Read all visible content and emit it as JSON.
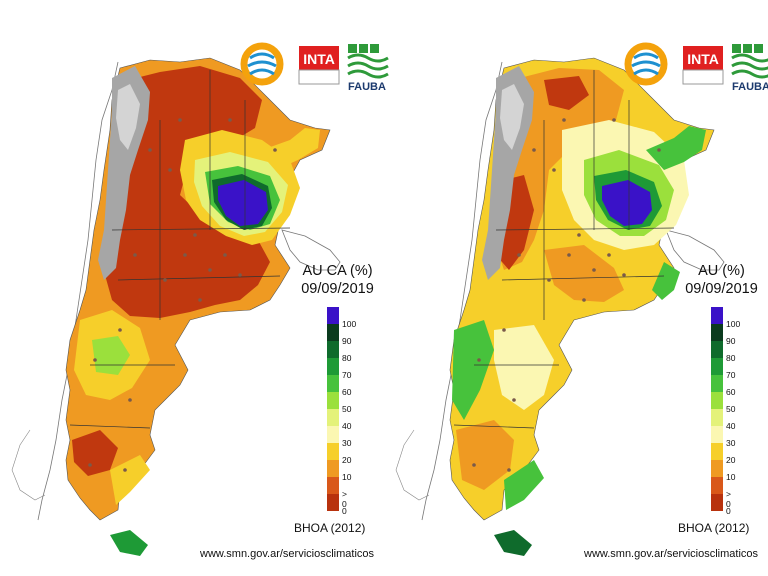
{
  "panels": [
    {
      "id": "left",
      "title": "AU CA (%)",
      "date": "09/09/2019",
      "model": "BHOA (2012)",
      "source": "www.smn.gov.ar/serviciosclimaticos"
    },
    {
      "id": "right",
      "title": "AU (%)",
      "date": "09/09/2019",
      "model": "BHOA (2012)",
      "source": "www.smn.gov.ar/serviciosclimaticos"
    }
  ],
  "logos": {
    "inta": "INTA",
    "fauba": "FAUBA"
  },
  "legend": {
    "ticks": [
      "100",
      "90",
      "80",
      "70",
      "60",
      "50",
      "40",
      "30",
      "20",
      "10",
      "> 0",
      "0"
    ],
    "colors": [
      "#3a12c8",
      "#0b3b1e",
      "#0f6b2c",
      "#1e9a36",
      "#47c23c",
      "#9be03c",
      "#e4f27a",
      "#fbf7b2",
      "#f6cf2a",
      "#ef9a22",
      "#d9581a",
      "#b8320e"
    ]
  }
}
